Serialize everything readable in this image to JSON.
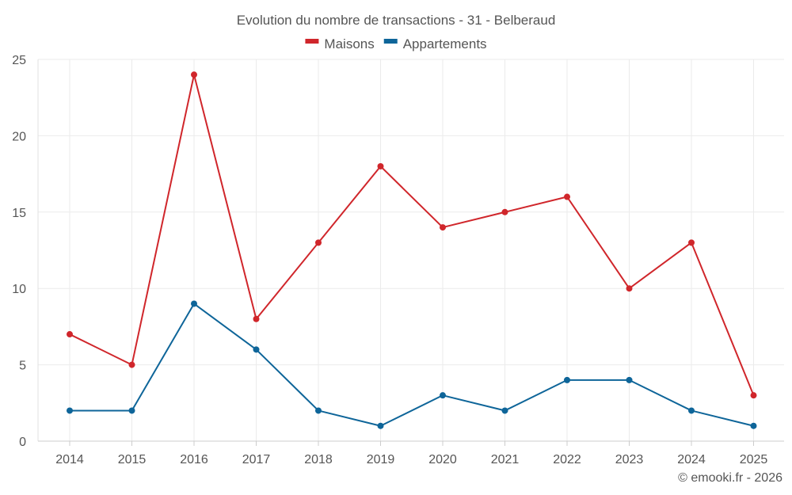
{
  "chart_data": {
    "type": "line",
    "title": "Evolution du nombre de transactions - 31 - Belberaud",
    "categories": [
      "2014",
      "2015",
      "2016",
      "2017",
      "2018",
      "2019",
      "2020",
      "2021",
      "2022",
      "2023",
      "2024",
      "2025"
    ],
    "series": [
      {
        "name": "Maisons",
        "color": "#d0262b",
        "values": [
          7,
          5,
          24,
          8,
          13,
          18,
          14,
          15,
          16,
          10,
          13,
          3
        ]
      },
      {
        "name": "Appartements",
        "color": "#0e6599",
        "values": [
          2,
          2,
          9,
          6,
          2,
          1,
          3,
          2,
          4,
          4,
          2,
          1
        ]
      }
    ],
    "ylim": [
      0,
      25
    ],
    "yticks": [
      0,
      5,
      10,
      15,
      20,
      25
    ],
    "xlabel": "",
    "ylabel": "",
    "grid": true,
    "legend": "top-center"
  },
  "footer": {
    "copyright": "© emooki.fr - 2026"
  }
}
